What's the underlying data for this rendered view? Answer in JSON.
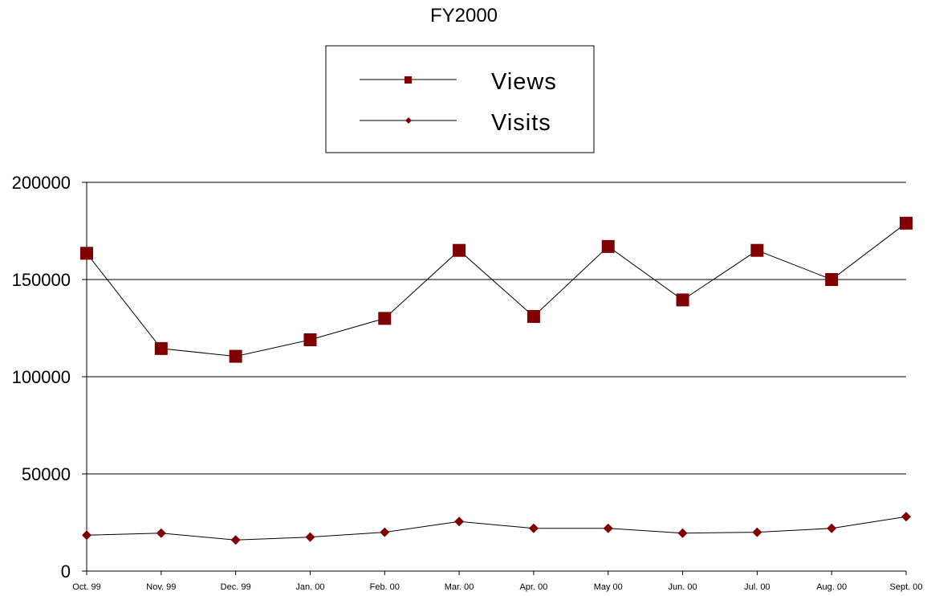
{
  "chart_data": {
    "type": "line",
    "title": "FY2000",
    "xlabel": "",
    "ylabel": "",
    "categories": [
      "Oct. 99",
      "Nov. 99",
      "Dec. 99",
      "Jan. 00",
      "Feb. 00",
      "Mar. 00",
      "Apr. 00",
      "May 00",
      "Jun. 00",
      "Jul. 00",
      "Aug. 00",
      "Sept. 00"
    ],
    "series": [
      {
        "name": "Views",
        "marker": "square",
        "color": "#800000",
        "values": [
          163500,
          114500,
          110500,
          119000,
          130000,
          165000,
          131000,
          167000,
          139500,
          165000,
          150000,
          179000
        ]
      },
      {
        "name": "Visits",
        "marker": "diamond",
        "color": "#800000",
        "values": [
          18500,
          19500,
          16000,
          17500,
          20000,
          25500,
          22000,
          22000,
          19500,
          20000,
          22000,
          28000
        ]
      }
    ],
    "ylim": [
      0,
      200000
    ],
    "yticks": [
      "0",
      "50000",
      "100000",
      "150000",
      "200000"
    ],
    "grid": true,
    "legend_position": "top-center",
    "line_color": "#000000"
  }
}
